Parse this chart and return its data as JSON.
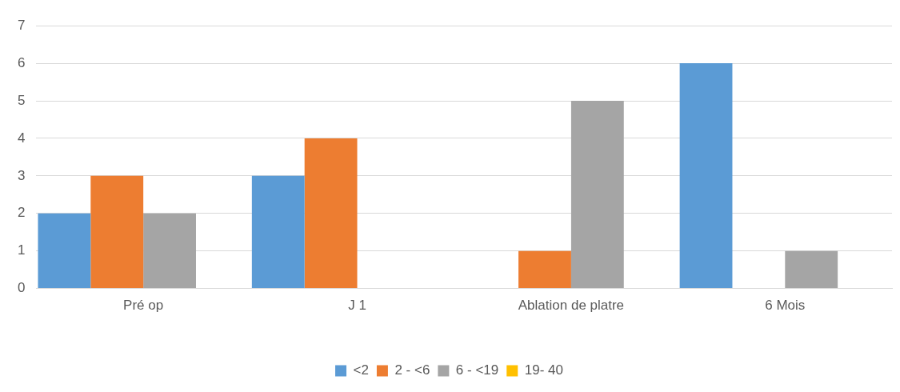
{
  "chart_data": {
    "type": "bar",
    "categories": [
      "Pré op",
      "J 1",
      "Ablation de platre",
      "6 Mois"
    ],
    "series": [
      {
        "name": "<2",
        "color": "#5b9bd5",
        "values": [
          2,
          3,
          0,
          6
        ]
      },
      {
        "name": "2 - <6",
        "color": "#ed7d31",
        "values": [
          3,
          4,
          1,
          0
        ]
      },
      {
        "name": "6 - <19",
        "color": "#a5a5a5",
        "values": [
          2,
          0,
          5,
          1
        ]
      },
      {
        "name": "19- 40",
        "color": "#ffc000",
        "values": [
          0,
          0,
          0,
          0
        ]
      }
    ],
    "ylim": [
      0,
      7
    ],
    "yticks": [
      0,
      1,
      2,
      3,
      4,
      5,
      6,
      7
    ],
    "grid": "y",
    "legend": "bottom"
  }
}
